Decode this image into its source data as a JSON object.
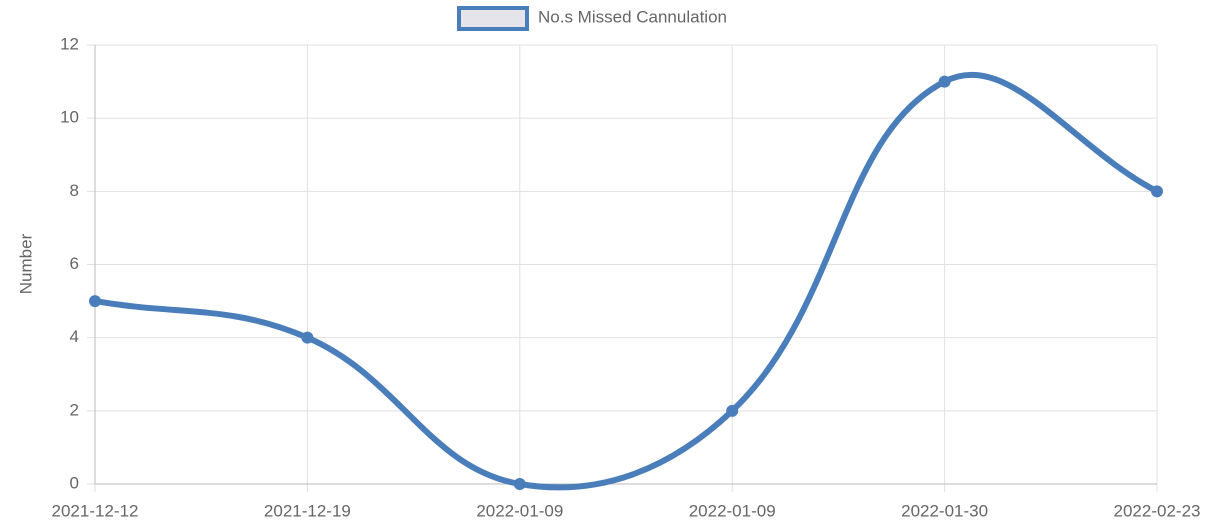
{
  "chart_data": {
    "type": "line",
    "legend": "top",
    "y_label": "Number",
    "categories": [
      "2021-12-12",
      "2021-12-19",
      "2022-01-09",
      "2022-01-09",
      "2022-01-30",
      "2022-02-23"
    ],
    "series": [
      {
        "name": "No.s Missed Cannulation",
        "color": "#4a7ebb",
        "values": [
          5,
          4,
          0,
          2,
          11,
          8
        ]
      }
    ],
    "ylim": [
      0,
      12
    ],
    "yticks": [
      0,
      2,
      4,
      6,
      8,
      10,
      12
    ],
    "grid": true
  }
}
